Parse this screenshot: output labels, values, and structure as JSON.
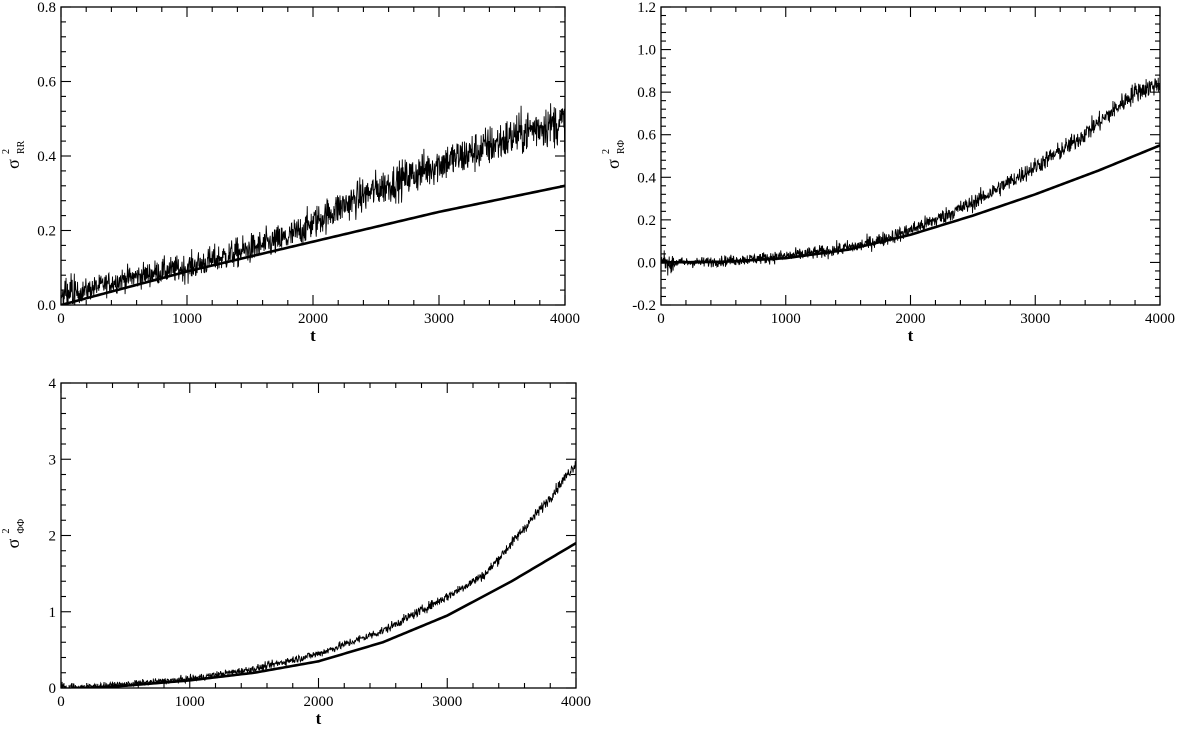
{
  "chart_data": [
    {
      "type": "line",
      "xlabel": "t",
      "ylabel": {
        "base": "σ",
        "sup": "2",
        "sub": "RR"
      },
      "xlim": [
        0,
        4000
      ],
      "ylim": [
        0.0,
        0.8
      ],
      "xticks": [
        0,
        1000,
        2000,
        3000,
        4000
      ],
      "xtick_labels": [
        "0",
        "1000",
        "2000",
        "3000",
        "4000"
      ],
      "yticks": [
        0.0,
        0.2,
        0.4,
        0.6,
        0.8
      ],
      "ytick_labels": [
        "0.0",
        "0.2",
        "0.4",
        "0.6",
        "0.8"
      ],
      "grid": false,
      "series": [
        {
          "style": "thin-noisy",
          "x": [
            0,
            200,
            500,
            800,
            1000,
            1300,
            1500,
            1800,
            2000,
            2200,
            2500,
            2800,
            3000,
            3200,
            3500,
            3800,
            4000
          ],
          "y": [
            0.02,
            0.04,
            0.07,
            0.09,
            0.1,
            0.13,
            0.15,
            0.18,
            0.22,
            0.26,
            0.31,
            0.35,
            0.38,
            0.4,
            0.44,
            0.48,
            0.49
          ],
          "noise": 0.025
        },
        {
          "style": "thick-smooth",
          "x": [
            0,
            500,
            1000,
            1500,
            2000,
            2500,
            3000,
            3500,
            4000
          ],
          "y": [
            0.0,
            0.045,
            0.09,
            0.13,
            0.17,
            0.21,
            0.25,
            0.285,
            0.32
          ]
        }
      ]
    },
    {
      "type": "line",
      "xlabel": "t",
      "ylabel": {
        "base": "σ",
        "sup": "2",
        "sub": "RΦ"
      },
      "xlim": [
        0,
        4000
      ],
      "ylim": [
        -0.2,
        1.2
      ],
      "xticks": [
        0,
        1000,
        2000,
        3000,
        4000
      ],
      "xtick_labels": [
        "0",
        "1000",
        "2000",
        "3000",
        "4000"
      ],
      "yticks": [
        -0.2,
        0.0,
        0.2,
        0.4,
        0.6,
        0.8,
        1.0,
        1.2
      ],
      "ytick_labels": [
        "-0.2",
        "0.0",
        "0.2",
        "0.4",
        "0.6",
        "0.8",
        "1.0",
        "1.2"
      ],
      "grid": false,
      "series": [
        {
          "style": "thin-noisy",
          "x": [
            0,
            300,
            600,
            1000,
            1300,
            1600,
            1900,
            2200,
            2500,
            2800,
            3000,
            3300,
            3600,
            3800,
            4000
          ],
          "y": [
            0.0,
            0.0,
            0.01,
            0.03,
            0.05,
            0.08,
            0.13,
            0.2,
            0.28,
            0.38,
            0.45,
            0.56,
            0.7,
            0.8,
            0.84
          ],
          "noise": 0.02
        },
        {
          "style": "thick-smooth",
          "x": [
            0,
            500,
            1000,
            1500,
            2000,
            2500,
            3000,
            3500,
            4000
          ],
          "y": [
            0.0,
            0.003,
            0.02,
            0.06,
            0.13,
            0.22,
            0.32,
            0.43,
            0.55
          ]
        }
      ]
    },
    {
      "type": "line",
      "xlabel": "t",
      "ylabel": {
        "base": "σ",
        "sup": "2",
        "sub": "ΦΦ"
      },
      "xlim": [
        0,
        4000
      ],
      "ylim": [
        0,
        4
      ],
      "xticks": [
        0,
        1000,
        2000,
        3000,
        4000
      ],
      "xtick_labels": [
        "0",
        "1000",
        "2000",
        "3000",
        "4000"
      ],
      "yticks": [
        0,
        1,
        2,
        3,
        4
      ],
      "ytick_labels": [
        "0",
        "1",
        "2",
        "3",
        "4"
      ],
      "grid": false,
      "series": [
        {
          "style": "thin-noisy",
          "x": [
            0,
            500,
            1000,
            1500,
            2000,
            2500,
            3000,
            3300,
            3600,
            3800,
            4000
          ],
          "y": [
            0.0,
            0.05,
            0.12,
            0.25,
            0.45,
            0.75,
            1.2,
            1.5,
            2.1,
            2.5,
            2.95
          ],
          "noise": 0.03
        },
        {
          "style": "thick-smooth",
          "x": [
            0,
            500,
            1000,
            1500,
            2000,
            2500,
            3000,
            3500,
            4000
          ],
          "y": [
            -0.02,
            0.03,
            0.1,
            0.2,
            0.35,
            0.6,
            0.95,
            1.4,
            1.9
          ]
        }
      ]
    }
  ]
}
